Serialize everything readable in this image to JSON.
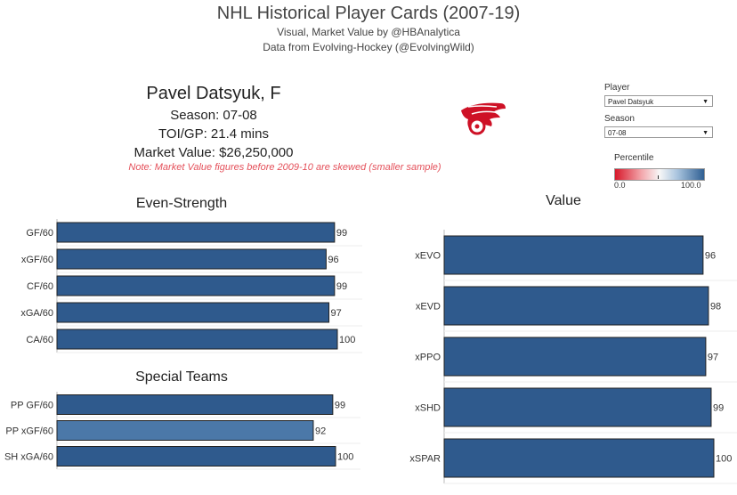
{
  "header": {
    "title": "NHL Historical Player Cards (2007-19)",
    "subtitle1": "Visual, Market Value by @HBAnalytica",
    "subtitle2": "Data from Evolving-Hockey (@EvolvingWild)"
  },
  "player_info": {
    "name": "Pavel Datsyuk, F",
    "season_line": "Season:  07-08",
    "toi_line": "TOI/GP: 21.4 mins",
    "market_value_line": "Market Value: $26,250,000",
    "note": "Note: Market Value figures before 2009-10 are skewed (smaller sample)"
  },
  "filters": {
    "player_label": "Player",
    "player_value": "Pavel Datsyuk",
    "season_label": "Season",
    "season_value": "07-08"
  },
  "legend": {
    "title": "Percentile",
    "min_label": "0.0",
    "max_label": "100.0",
    "low_color": "#d7192b",
    "mid_color": "#f7f7f7",
    "high_color": "#2f5f93"
  },
  "logo": {
    "icon": "red-wings-logo",
    "color": "#ce1126"
  },
  "colors": {
    "bar_dark": "#2f5a8d",
    "bar_light": "#4b78a8",
    "bar_outline": "#222222"
  },
  "chart_data": [
    {
      "type": "bar",
      "orientation": "horizontal",
      "title": "Even-Strength",
      "categories": [
        "GF/60",
        "xGF/60",
        "CF/60",
        "xGA/60",
        "CA/60"
      ],
      "values": [
        99,
        96,
        99,
        97,
        100
      ],
      "xlim": [
        0,
        100
      ]
    },
    {
      "type": "bar",
      "orientation": "horizontal",
      "title": "Special Teams",
      "categories": [
        "PP GF/60",
        "PP xGF/60",
        "SH xGA/60"
      ],
      "values": [
        99,
        92,
        100
      ],
      "xlim": [
        0,
        100
      ]
    },
    {
      "type": "bar",
      "orientation": "horizontal",
      "title": "Value",
      "categories": [
        "xEVO",
        "xEVD",
        "xPPO",
        "xSHD",
        "xSPAR"
      ],
      "values": [
        96,
        98,
        97,
        99,
        100
      ],
      "xlim": [
        0,
        100
      ]
    }
  ]
}
